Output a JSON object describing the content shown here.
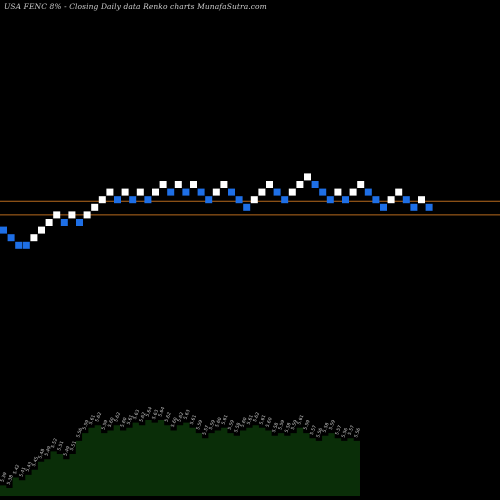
{
  "header": {
    "title": "USA FENC 8% -  Closing Daily data  Renko  charts MunafaSutra.com"
  },
  "colors": {
    "background": "#000000",
    "up_brick": "#ffffff",
    "down_brick": "#1e6fe6",
    "level_line": "#b86a1e",
    "volume_fill": "#0a2e08",
    "volume_label": "#cfcfcf"
  },
  "chart_data": [
    {
      "type": "renko",
      "title": "USA FENC 8% -  Closing Daily data  Renko  charts MunafaSutra.com",
      "bricks": [
        {
          "dir": "down",
          "level": -1
        },
        {
          "dir": "down",
          "level": -2
        },
        {
          "dir": "down",
          "level": -3
        },
        {
          "dir": "down",
          "level": -3
        },
        {
          "dir": "up",
          "level": -2
        },
        {
          "dir": "up",
          "level": -1
        },
        {
          "dir": "up",
          "level": 0
        },
        {
          "dir": "up",
          "level": 1
        },
        {
          "dir": "down",
          "level": 0
        },
        {
          "dir": "up",
          "level": 1
        },
        {
          "dir": "down",
          "level": 0
        },
        {
          "dir": "up",
          "level": 1
        },
        {
          "dir": "up",
          "level": 2
        },
        {
          "dir": "up",
          "level": 3
        },
        {
          "dir": "up",
          "level": 4
        },
        {
          "dir": "down",
          "level": 3
        },
        {
          "dir": "up",
          "level": 4
        },
        {
          "dir": "down",
          "level": 3
        },
        {
          "dir": "up",
          "level": 4
        },
        {
          "dir": "down",
          "level": 3
        },
        {
          "dir": "up",
          "level": 4
        },
        {
          "dir": "up",
          "level": 5
        },
        {
          "dir": "down",
          "level": 4
        },
        {
          "dir": "up",
          "level": 5
        },
        {
          "dir": "down",
          "level": 4
        },
        {
          "dir": "up",
          "level": 5
        },
        {
          "dir": "down",
          "level": 4
        },
        {
          "dir": "down",
          "level": 3
        },
        {
          "dir": "up",
          "level": 4
        },
        {
          "dir": "up",
          "level": 5
        },
        {
          "dir": "down",
          "level": 4
        },
        {
          "dir": "down",
          "level": 3
        },
        {
          "dir": "down",
          "level": 2
        },
        {
          "dir": "up",
          "level": 3
        },
        {
          "dir": "up",
          "level": 4
        },
        {
          "dir": "up",
          "level": 5
        },
        {
          "dir": "down",
          "level": 4
        },
        {
          "dir": "down",
          "level": 3
        },
        {
          "dir": "up",
          "level": 4
        },
        {
          "dir": "up",
          "level": 5
        },
        {
          "dir": "up",
          "level": 6
        },
        {
          "dir": "down",
          "level": 5
        },
        {
          "dir": "down",
          "level": 4
        },
        {
          "dir": "down",
          "level": 3
        },
        {
          "dir": "up",
          "level": 4
        },
        {
          "dir": "down",
          "level": 3
        },
        {
          "dir": "up",
          "level": 4
        },
        {
          "dir": "up",
          "level": 5
        },
        {
          "dir": "down",
          "level": 4
        },
        {
          "dir": "down",
          "level": 3
        },
        {
          "dir": "down",
          "level": 2
        },
        {
          "dir": "up",
          "level": 3
        },
        {
          "dir": "up",
          "level": 4
        },
        {
          "dir": "down",
          "level": 3
        },
        {
          "dir": "down",
          "level": 2
        },
        {
          "dir": "up",
          "level": 3
        },
        {
          "dir": "down",
          "level": 2
        }
      ],
      "reference_levels": [
        2.8,
        1.0
      ]
    },
    {
      "type": "area",
      "series_description": "volume / closing price labels under each brick",
      "labels": [
        "5.39",
        "5.38",
        "5.42",
        "5.41",
        "5.43",
        "5.45",
        "5.48",
        "5.49",
        "5.52",
        "5.51",
        "5.49",
        "5.51",
        "5.56",
        "5.59",
        "5.61",
        "5.62",
        "5.59",
        "5.60",
        "5.62",
        "5.60",
        "5.61",
        "5.63",
        "5.62",
        "5.64",
        "5.63",
        "5.64",
        "5.62",
        "5.60",
        "5.62",
        "5.63",
        "5.61",
        "5.59",
        "5.57",
        "5.59",
        "5.60",
        "5.61",
        "5.59",
        "5.58",
        "5.60",
        "5.61",
        "5.62",
        "5.61",
        "5.60",
        "5.58",
        "5.59",
        "5.58",
        "5.59",
        "5.61",
        "5.59",
        "5.57",
        "5.56",
        "5.58",
        "5.59",
        "5.57",
        "5.56",
        "5.57",
        "5.56"
      ],
      "values": [
        5.39,
        5.38,
        5.42,
        5.41,
        5.43,
        5.45,
        5.48,
        5.49,
        5.52,
        5.51,
        5.49,
        5.51,
        5.56,
        5.59,
        5.61,
        5.62,
        5.59,
        5.6,
        5.62,
        5.6,
        5.61,
        5.63,
        5.62,
        5.64,
        5.63,
        5.64,
        5.62,
        5.6,
        5.62,
        5.63,
        5.61,
        5.59,
        5.57,
        5.59,
        5.6,
        5.61,
        5.59,
        5.58,
        5.6,
        5.61,
        5.62,
        5.61,
        5.6,
        5.58,
        5.59,
        5.58,
        5.59,
        5.61,
        5.59,
        5.57,
        5.56,
        5.58,
        5.59,
        5.57,
        5.56,
        5.57,
        5.56
      ]
    }
  ]
}
